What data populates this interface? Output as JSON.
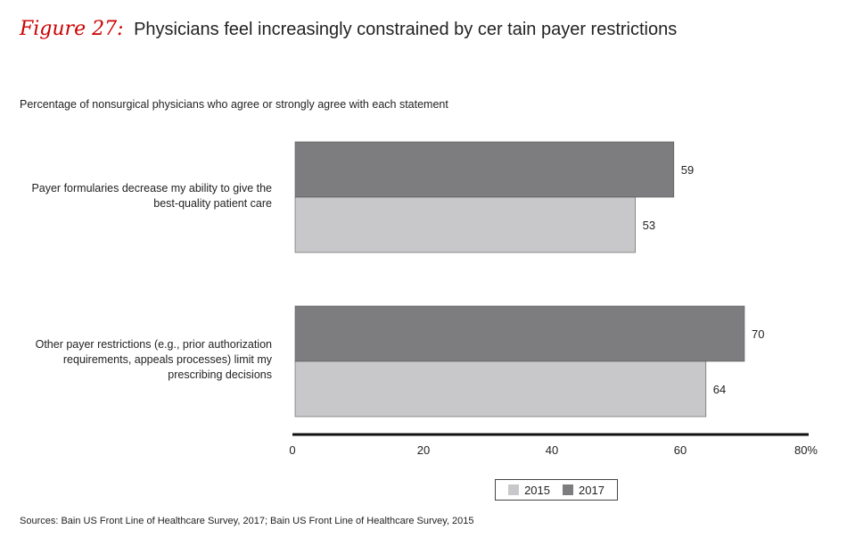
{
  "figure": {
    "label": "Figure 27:",
    "title": "Physicians feel increasingly constrained by cer tain payer restrictions"
  },
  "subtitle": "Percentage of nonsurgical physicians who agree or strongly agree with each statement",
  "source": "Sources: Bain US Front Line of Healthcare Survey, 2017; Bain US Front Line of Healthcare Survey, 2015",
  "colors": {
    "s2015": "#c8c8ca",
    "s2017": "#7d7d80",
    "axis": "#111111"
  },
  "chart_data": {
    "type": "bar",
    "orientation": "horizontal",
    "categories": [
      "Payer formularies decrease my ability to give the best-quality patient care",
      "Other payer restrictions (e.g., prior authorization requirements, appeals processes) limit my prescribing decisions"
    ],
    "category_lines": [
      [
        "Payer formularies decrease my ability to give the",
        "best-quality patient care"
      ],
      [
        "Other payer restrictions (e.g., prior authorization",
        "requirements, appeals processes) limit my",
        "prescribing decisions"
      ]
    ],
    "series": [
      {
        "name": "2017",
        "values": [
          59,
          70
        ]
      },
      {
        "name": "2015",
        "values": [
          53,
          64
        ]
      }
    ],
    "xticks": [
      "0",
      "20",
      "40",
      "60",
      "80%"
    ],
    "xlim": [
      0,
      80
    ],
    "grid": false,
    "legend_position": "bottom-right"
  }
}
